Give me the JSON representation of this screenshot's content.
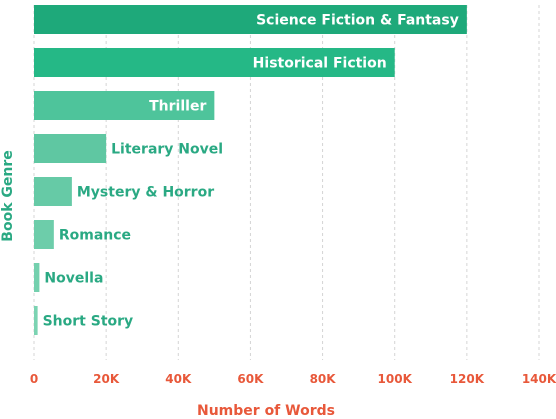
{
  "chart_data": {
    "type": "bar",
    "orientation": "horizontal",
    "categories": [
      "Science Fiction & Fantasy",
      "Historical Fiction",
      "Thriller",
      "Literary Novel",
      "Mystery & Horror",
      "Romance",
      "Novella",
      "Short Story"
    ],
    "values": [
      120000,
      100000,
      50000,
      20000,
      10500,
      5500,
      1500,
      1000
    ],
    "xlabel": "Number of Words",
    "ylabel": "Book Genre",
    "xlim": [
      0,
      140000
    ],
    "xticks": [
      "0",
      "20K",
      "40K",
      "60K",
      "80K",
      "100K",
      "120K",
      "140K"
    ],
    "grid": "vertical dashed",
    "colors": {
      "bars": [
        "#1ea97a",
        "#25b886",
        "#4ec49b",
        "#5fc7a2",
        "#66caa6",
        "#6dcdaa",
        "#74d0ae",
        "#7bd3b2"
      ],
      "label_inside": "#ffffff",
      "label_outside": "#2aa983",
      "axis_ticks": "#e8583a",
      "xlabel": "#e8583a",
      "ylabel": "#2aa983",
      "grid": "#d4d4d4"
    }
  }
}
